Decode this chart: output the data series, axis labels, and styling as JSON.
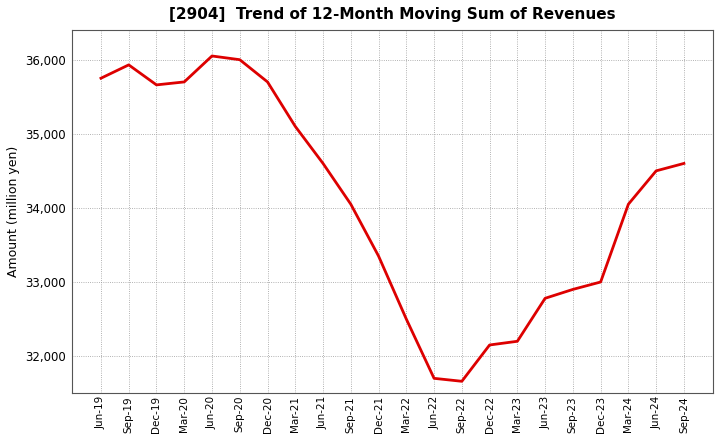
{
  "title": "[2904]  Trend of 12-Month Moving Sum of Revenues",
  "ylabel": "Amount (million yen)",
  "line_color": "#dd0000",
  "line_width": 2.0,
  "background_color": "#ffffff",
  "grid_color": "#999999",
  "ylim": [
    31500,
    36400
  ],
  "yticks": [
    32000,
    33000,
    34000,
    35000,
    36000
  ],
  "x_labels": [
    "Jun-19",
    "Sep-19",
    "Dec-19",
    "Mar-20",
    "Jun-20",
    "Sep-20",
    "Dec-20",
    "Mar-21",
    "Jun-21",
    "Sep-21",
    "Dec-21",
    "Mar-22",
    "Jun-22",
    "Sep-22",
    "Dec-22",
    "Mar-23",
    "Jun-23",
    "Sep-23",
    "Dec-23",
    "Mar-24",
    "Jun-24",
    "Sep-24"
  ],
  "values": [
    35750,
    35930,
    35660,
    35700,
    36050,
    36000,
    35700,
    35100,
    34600,
    34050,
    33350,
    32500,
    31700,
    31660,
    32150,
    32200,
    32780,
    32900,
    33000,
    34050,
    34500,
    34600
  ]
}
